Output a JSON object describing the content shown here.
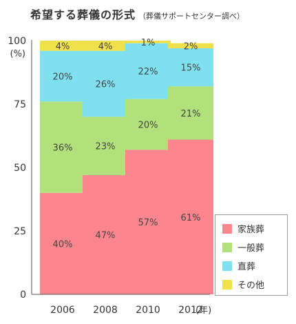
{
  "chart_data": {
    "type": "bar",
    "stacked": true,
    "title": "希望する葬儀の形式",
    "subtitle": "（葬儀サポートセンター調べ）",
    "ylabel": "(%)",
    "xlabel_unit": "(年)",
    "ylim": [
      0,
      100
    ],
    "yticks": [
      "0",
      "25",
      "50",
      "75",
      "100"
    ],
    "categories": [
      "2006",
      "2008",
      "2010",
      "2012"
    ],
    "series": [
      {
        "name": "家族葬",
        "color": "#fd868e",
        "values": [
          40,
          47,
          57,
          61
        ],
        "labels": [
          "40%",
          "47%",
          "57%",
          "61%"
        ]
      },
      {
        "name": "一般葬",
        "color": "#b2e07a",
        "values": [
          36,
          23,
          20,
          21
        ],
        "labels": [
          "36%",
          "23%",
          "20%",
          "21%"
        ]
      },
      {
        "name": "直葬",
        "color": "#7fe0f0",
        "values": [
          20,
          26,
          22,
          15
        ],
        "labels": [
          "20%",
          "26%",
          "22%",
          "15%"
        ]
      },
      {
        "name": "その他",
        "color": "#f0e14a",
        "values": [
          4,
          4,
          1,
          2
        ],
        "labels": [
          "4%",
          "4%",
          "1%",
          "2%"
        ]
      }
    ],
    "legend": "bottom-right",
    "grid": false
  }
}
